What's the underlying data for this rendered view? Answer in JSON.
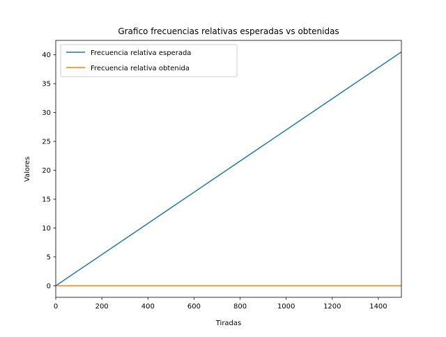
{
  "chart_data": {
    "type": "line",
    "title": "Grafico frecuencias relativas esperadas vs obtenidas",
    "xlabel": "Tiradas",
    "ylabel": "Valores",
    "xlim": [
      0,
      1500
    ],
    "ylim": [
      -2.0,
      42.5
    ],
    "xticks": [
      0,
      200,
      400,
      600,
      800,
      1000,
      1200,
      1400
    ],
    "yticks": [
      0,
      5,
      10,
      15,
      20,
      25,
      30,
      35,
      40
    ],
    "xtick_labels": [
      "0",
      "200",
      "400",
      "600",
      "800",
      "1000",
      "1200",
      "1400"
    ],
    "ytick_labels": [
      "0",
      "5",
      "10",
      "15",
      "20",
      "25",
      "30",
      "35",
      "40"
    ],
    "grid": false,
    "legend_position": "top-left",
    "series": [
      {
        "name": "Frecuencia relativa esperada",
        "color": "#1f77b4",
        "x": [
          0,
          1500
        ],
        "y": [
          0.0,
          40.5
        ]
      },
      {
        "name": "Frecuencia relativa obtenida",
        "color": "#ff7f0e",
        "x": [
          0,
          1500
        ],
        "y": [
          0.0,
          0.0
        ]
      }
    ]
  }
}
